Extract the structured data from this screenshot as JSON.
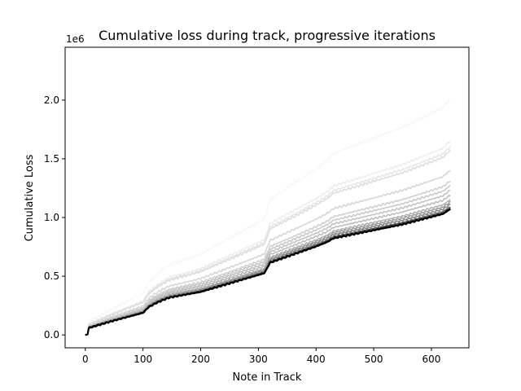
{
  "chart_data": {
    "type": "line",
    "title": "Cumulative loss during track, progressive iterations",
    "xlabel": "Note in Track",
    "ylabel": "Cumulative Loss",
    "y_offset_label": "1e6",
    "xlim": [
      -35,
      665
    ],
    "ylim": [
      -0.11,
      2.45
    ],
    "xticks": [
      0,
      100,
      200,
      300,
      400,
      500,
      600
    ],
    "xtick_labels": [
      "0",
      "100",
      "200",
      "300",
      "400",
      "500",
      "600"
    ],
    "yticks": [
      0.0,
      0.5,
      1.0,
      1.5,
      2.0
    ],
    "ytick_labels": [
      "0.0",
      "0.5",
      "1.0",
      "1.5",
      "2.0"
    ],
    "grid": false,
    "legend": "none",
    "steps": [
      [
        0,
        0
      ],
      [
        5,
        0.005
      ],
      [
        6,
        0.06
      ],
      [
        40,
        0.11
      ],
      [
        100,
        0.19
      ],
      [
        110,
        0.24
      ],
      [
        125,
        0.28
      ],
      [
        145,
        0.32
      ],
      [
        200,
        0.37
      ],
      [
        310,
        0.53
      ],
      [
        315,
        0.57
      ],
      [
        320,
        0.62
      ],
      [
        400,
        0.76
      ],
      [
        420,
        0.8
      ],
      [
        430,
        0.83
      ],
      [
        500,
        0.9
      ],
      [
        550,
        0.95
      ],
      [
        620,
        1.04
      ],
      [
        632,
        1.08
      ]
    ],
    "series": [
      {
        "final_value": 2.01,
        "color": "#f7f7f7"
      },
      {
        "final_value": 1.65,
        "color": "#ededed"
      },
      {
        "final_value": 1.6,
        "color": "#e6e6e6"
      },
      {
        "final_value": 1.57,
        "color": "#dddddd"
      },
      {
        "final_value": 1.4,
        "color": "#d6d6d6"
      },
      {
        "final_value": 1.31,
        "color": "#cfcfcf"
      },
      {
        "final_value": 1.27,
        "color": "#c9c9c9"
      },
      {
        "final_value": 1.23,
        "color": "#c3c3c3"
      },
      {
        "final_value": 1.19,
        "color": "#bdbdbd"
      },
      {
        "final_value": 1.15,
        "color": "#b0b0b0"
      },
      {
        "final_value": 1.13,
        "color": "#a0a0a0"
      },
      {
        "final_value": 1.11,
        "color": "#8a8a8a"
      },
      {
        "final_value": 1.09,
        "color": "#6e6e6e"
      },
      {
        "final_value": 1.08,
        "color": "#4a4a4a"
      },
      {
        "final_value": 1.07,
        "color": "#262626"
      },
      {
        "final_value": 1.07,
        "color": "#000000"
      }
    ]
  }
}
